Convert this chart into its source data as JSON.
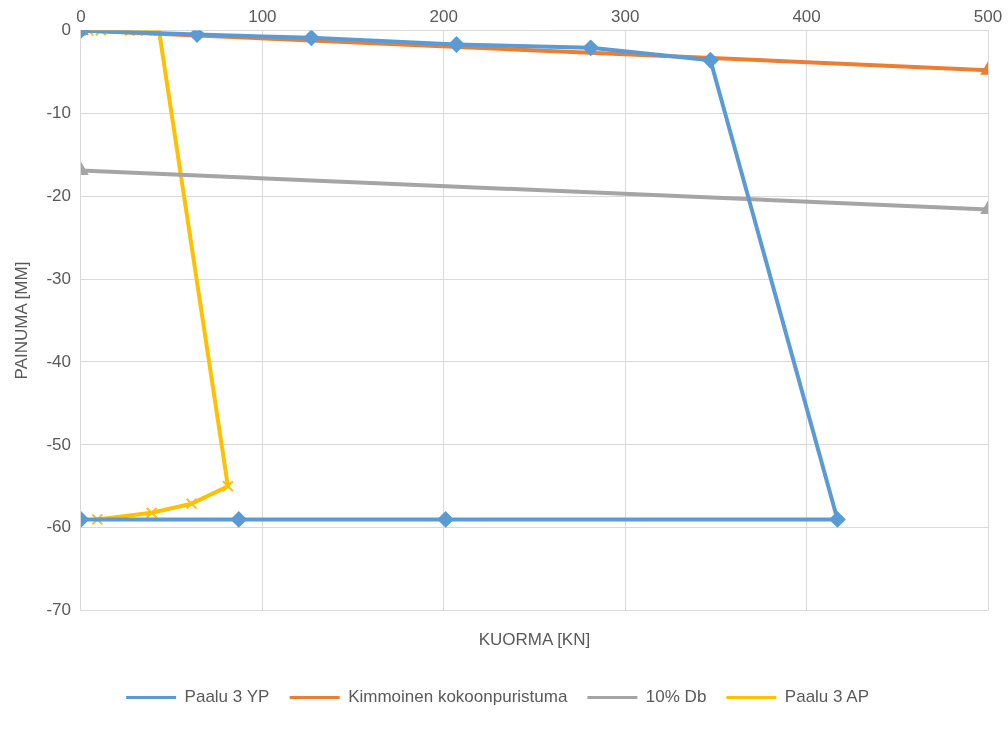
{
  "chart_data": {
    "type": "line",
    "xlabel": "KUORMA [KN]",
    "ylabel": "PAINUMA [MM]",
    "xlim": [
      0,
      500
    ],
    "xticks": [
      0,
      100,
      200,
      300,
      400,
      500
    ],
    "ylim": [
      -70,
      0
    ],
    "yticks": [
      -70,
      -60,
      -50,
      -40,
      -30,
      -20,
      -10,
      0
    ],
    "grid": true,
    "legend": "bottom",
    "series": [
      {
        "name": "Paalu 3 YP",
        "color": "#5b9bd5",
        "marker": "diamond",
        "x": [
          0,
          64,
          127,
          207,
          281,
          347,
          417,
          201,
          87,
          0
        ],
        "values": [
          0,
          -0.5,
          -0.9,
          -1.7,
          -2.1,
          -3.6,
          -59,
          -59,
          -59,
          -59
        ]
      },
      {
        "name": "Kimmoinen kokoonpuristuma",
        "color": "#ed7d31",
        "marker": "triangle",
        "x": [
          0,
          500
        ],
        "values": [
          0,
          -4.8
        ]
      },
      {
        "name": "10% Db",
        "color": "#a5a5a5",
        "marker": "triangle",
        "x": [
          0,
          500
        ],
        "values": [
          -16.9,
          -21.6
        ]
      },
      {
        "name": "Paalu 3 AP",
        "color": "#ffc000",
        "marker": "cross",
        "x": [
          0,
          4,
          11,
          27,
          31,
          36,
          43,
          81,
          61,
          39,
          9
        ],
        "values": [
          0,
          0,
          0,
          0,
          0,
          0,
          0,
          -55,
          -57.1,
          -58.2,
          -59
        ]
      }
    ]
  }
}
